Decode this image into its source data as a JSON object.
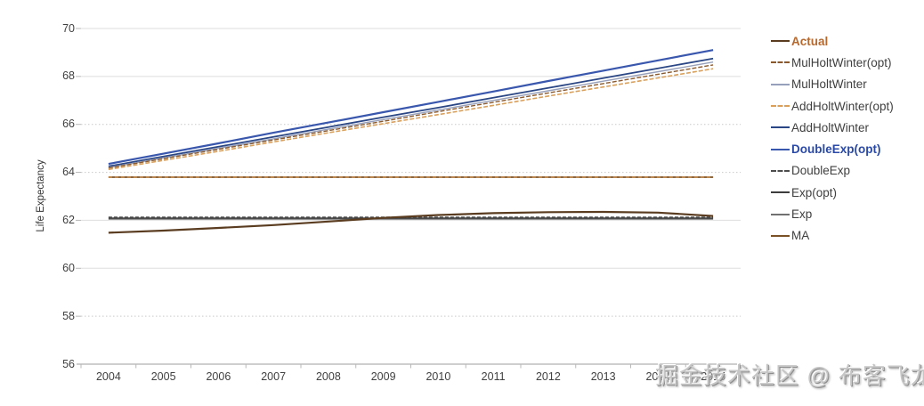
{
  "watermark": "掘金技术社区 @ 布客飞龙",
  "chart_data": {
    "type": "line",
    "title": "",
    "xlabel": "",
    "ylabel": "Life Expectancy",
    "x": [
      "2004",
      "2005",
      "2006",
      "2007",
      "2008",
      "2009",
      "2010",
      "2011",
      "2012",
      "2013",
      "2014",
      "2015"
    ],
    "ylim": [
      56,
      70
    ],
    "yticks": [
      56,
      58,
      60,
      62,
      64,
      66,
      68,
      70
    ],
    "grid": true,
    "legend_position": "right",
    "series": [
      {
        "name": "Actual",
        "color": "#5a3d20",
        "width": 2.2,
        "dash": null,
        "label_color": "#b5692f",
        "bold": true,
        "values": [
          61.48,
          61.57,
          61.68,
          61.8,
          61.95,
          62.1,
          62.22,
          62.3,
          62.34,
          62.35,
          62.32,
          62.18
        ]
      },
      {
        "name": "MulHoltWinter(opt)",
        "color": "#8a5a2e",
        "width": 1.4,
        "dash": "5 2",
        "label_color": "#3f3f3f",
        "bold": false,
        "values": [
          64.18,
          64.57,
          64.96,
          65.35,
          65.74,
          66.13,
          66.53,
          66.92,
          67.31,
          67.7,
          68.09,
          68.48
        ]
      },
      {
        "name": "MulHoltWinter",
        "color": "#97a0ba",
        "width": 1.4,
        "dash": null,
        "label_color": "#3f3f3f",
        "bold": false,
        "values": [
          64.2,
          64.6,
          65.0,
          65.4,
          65.8,
          66.2,
          66.6,
          67.0,
          67.4,
          67.8,
          68.2,
          68.6
        ]
      },
      {
        "name": "AddHoltWinter(opt)",
        "color": "#d9a05c",
        "width": 1.6,
        "dash": "5 2",
        "label_color": "#3f3f3f",
        "bold": false,
        "values": [
          64.12,
          64.5,
          64.88,
          65.27,
          65.65,
          66.03,
          66.41,
          66.79,
          67.18,
          67.56,
          67.94,
          68.32
        ]
      },
      {
        "name": "AddHoltWinter",
        "color": "#2a4685",
        "width": 1.8,
        "dash": null,
        "label_color": "#3f3f3f",
        "bold": false,
        "values": [
          64.25,
          64.66,
          65.07,
          65.48,
          65.89,
          66.3,
          66.7,
          67.11,
          67.52,
          67.93,
          68.34,
          68.75
        ]
      },
      {
        "name": "DoubleExp(opt)",
        "color": "#3a57ae",
        "width": 2.2,
        "dash": null,
        "label_color": "#2b4aa5",
        "bold": true,
        "values": [
          64.35,
          64.78,
          65.21,
          65.65,
          66.08,
          66.51,
          66.94,
          67.37,
          67.81,
          68.24,
          68.67,
          69.1
        ]
      },
      {
        "name": "DoubleExp",
        "color": "#4d4d4d",
        "width": 1.3,
        "dash": "4 2",
        "label_color": "#3f3f3f",
        "bold": false,
        "values": [
          62.13,
          62.13,
          62.13,
          62.13,
          62.13,
          62.13,
          62.13,
          62.13,
          62.13,
          62.13,
          62.13,
          62.13
        ]
      },
      {
        "name": "Exp(opt)",
        "color": "#3d3d3d",
        "width": 1.5,
        "dash": null,
        "label_color": "#3f3f3f",
        "bold": false,
        "values": [
          62.09,
          62.09,
          62.09,
          62.09,
          62.09,
          62.09,
          62.09,
          62.09,
          62.09,
          62.09,
          62.09,
          62.09
        ]
      },
      {
        "name": "Exp",
        "color": "#707070",
        "width": 1.3,
        "dash": null,
        "label_color": "#3f3f3f",
        "bold": false,
        "values": [
          62.05,
          62.05,
          62.05,
          62.05,
          62.05,
          62.05,
          62.05,
          62.05,
          62.05,
          62.05,
          62.05,
          62.05
        ]
      },
      {
        "name": "MA",
        "color": "#7a5026",
        "width": 1.8,
        "dash": null,
        "overlay_color": "#d08f4a",
        "overlay_dash": "4 3",
        "label_color": "#3f3f3f",
        "bold": false,
        "values": [
          63.8,
          63.8,
          63.8,
          63.8,
          63.8,
          63.8,
          63.8,
          63.8,
          63.8,
          63.8,
          63.8,
          63.8
        ]
      }
    ]
  }
}
